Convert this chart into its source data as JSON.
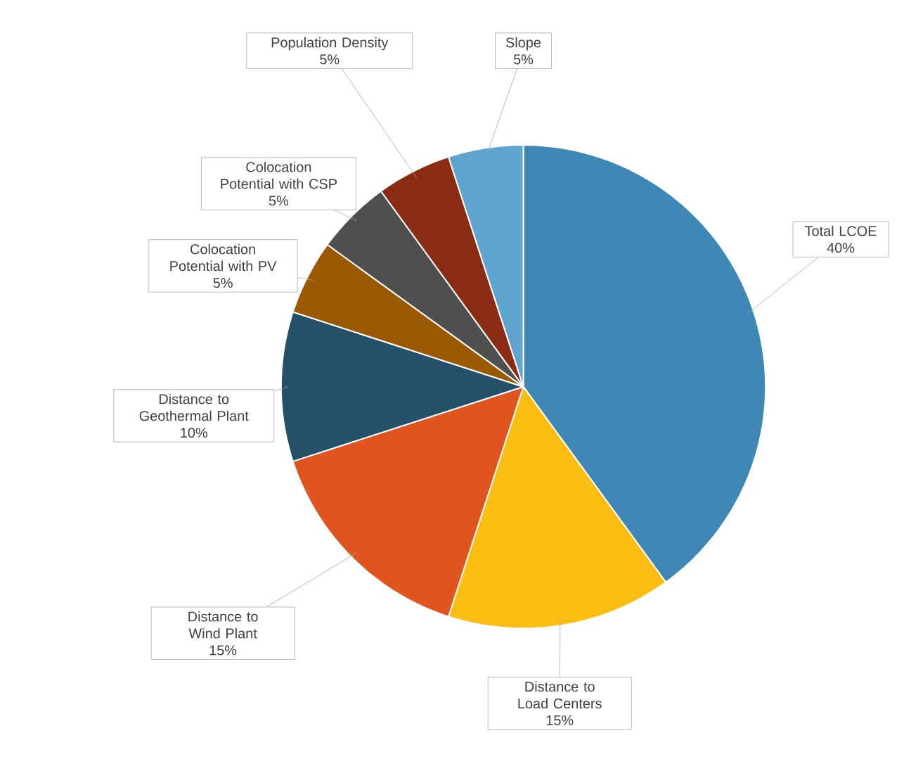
{
  "chart_data": {
    "type": "pie",
    "categories": [
      "Total LCOE",
      "Distance to Load Centers",
      "Distance to Wind Plant",
      "Distance to Geothermal Plant",
      "Colocation Potential with PV",
      "Colocation Potential with CSP",
      "Population Density",
      "Slope"
    ],
    "values": [
      40,
      15,
      15,
      10,
      5,
      5,
      5,
      5
    ],
    "value_labels": [
      "40%",
      "15%",
      "15%",
      "10%",
      "5%",
      "5%",
      "5%",
      "5%"
    ],
    "colors": [
      "#3f87b4",
      "#fbbd12",
      "#e0541f",
      "#25506a",
      "#9a5800",
      "#4f4f4f",
      "#8a2c14",
      "#5fa4cf"
    ],
    "legend": false
  }
}
